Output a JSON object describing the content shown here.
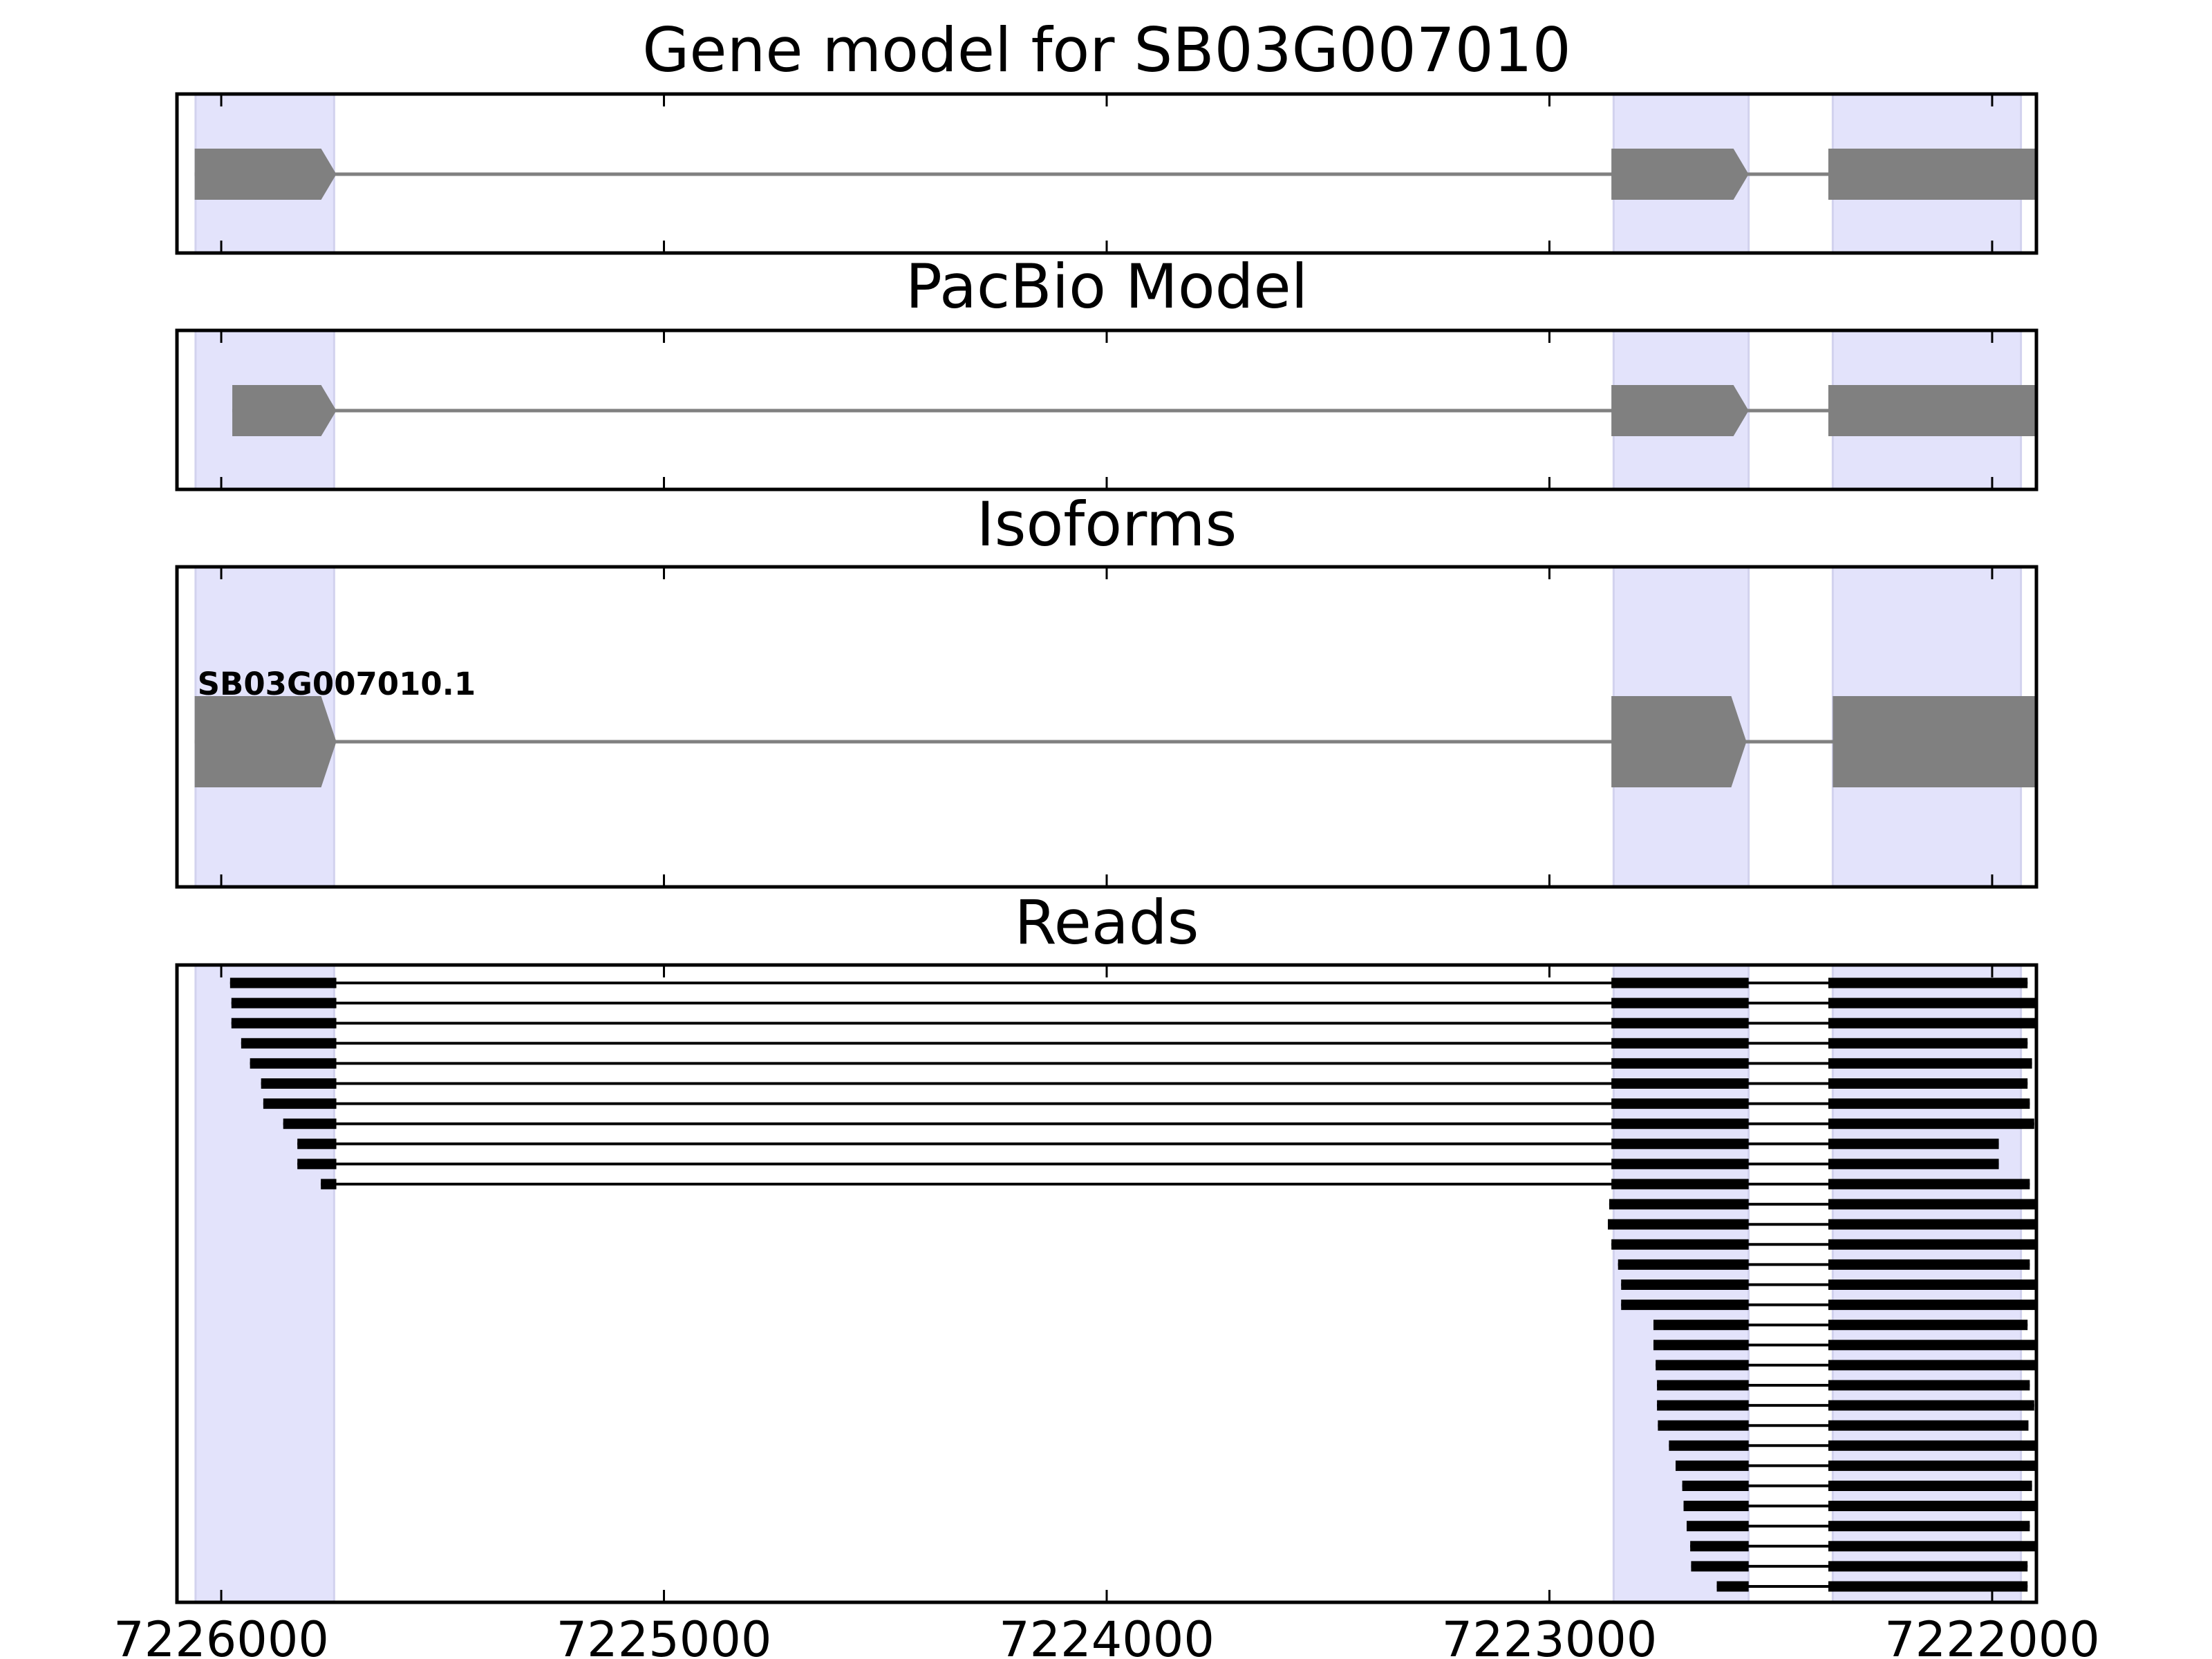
{
  "colors": {
    "exon_model": "#808080",
    "intron_model": "#808080",
    "read": "#000000",
    "highlight": "#e3e3fb",
    "highlight_edge": "#d2d2ee",
    "axis": "#000000"
  },
  "chart_data": [
    {
      "type": "gene-track",
      "title": "Gene model for SB03G007010",
      "strand": "-",
      "exons": [
        [
          7226060,
          7225740
        ],
        [
          7222860,
          7222550
        ],
        [
          7222370,
          7221620
        ]
      ]
    },
    {
      "type": "gene-track",
      "title": "PacBio Model",
      "strand": "-",
      "exons": [
        [
          7225975,
          7225740
        ],
        [
          7222860,
          7222550
        ],
        [
          7222370,
          7221615
        ]
      ]
    },
    {
      "type": "gene-track",
      "title": "Isoforms",
      "strand": "-",
      "isoforms": [
        {
          "name": "SB03G007010.1",
          "exons": [
            [
              7226060,
              7225740
            ],
            [
              7222860,
              7222555
            ],
            [
              7222360,
              7221620
            ]
          ]
        }
      ]
    },
    {
      "type": "read-track",
      "title": "Reads",
      "reads": [
        [
          [
            7225980,
            7225740
          ],
          [
            7222860,
            7222550
          ],
          [
            7222370,
            7221920
          ]
        ],
        [
          [
            7225977,
            7225740
          ],
          [
            7222860,
            7222550
          ],
          [
            7222370,
            7221890
          ]
        ],
        [
          [
            7225977,
            7225740
          ],
          [
            7222860,
            7222550
          ],
          [
            7222370,
            7221900
          ]
        ],
        [
          [
            7225955,
            7225740
          ],
          [
            7222860,
            7222550
          ],
          [
            7222370,
            7221920
          ]
        ],
        [
          [
            7225935,
            7225740
          ],
          [
            7222860,
            7222550
          ],
          [
            7222370,
            7221910
          ]
        ],
        [
          [
            7225910,
            7225740
          ],
          [
            7222860,
            7222550
          ],
          [
            7222370,
            7221920
          ]
        ],
        [
          [
            7225905,
            7225740
          ],
          [
            7222860,
            7222550
          ],
          [
            7222370,
            7221915
          ]
        ],
        [
          [
            7225860,
            7225740
          ],
          [
            7222860,
            7222550
          ],
          [
            7222370,
            7221905
          ]
        ],
        [
          [
            7225828,
            7225740
          ],
          [
            7222860,
            7222550
          ],
          [
            7222370,
            7221985
          ]
        ],
        [
          [
            7225828,
            7225740
          ],
          [
            7222860,
            7222550
          ],
          [
            7222370,
            7221985
          ]
        ],
        [
          [
            7225775,
            7225740
          ],
          [
            7222860,
            7222550
          ],
          [
            7222370,
            7221915
          ]
        ],
        [
          [
            7222865,
            7222550
          ],
          [
            7222370,
            7221900
          ]
        ],
        [
          [
            7222868,
            7222550
          ],
          [
            7222370,
            7221865
          ]
        ],
        [
          [
            7222860,
            7222550
          ],
          [
            7222370,
            7221865
          ]
        ],
        [
          [
            7222845,
            7222550
          ],
          [
            7222370,
            7221915
          ]
        ],
        [
          [
            7222838,
            7222550
          ],
          [
            7222370,
            7221870
          ]
        ],
        [
          [
            7222838,
            7222550
          ],
          [
            7222370,
            7221870
          ]
        ],
        [
          [
            7222765,
            7222550
          ],
          [
            7222370,
            7221920
          ]
        ],
        [
          [
            7222765,
            7222550
          ],
          [
            7222370,
            7221895
          ]
        ],
        [
          [
            7222760,
            7222550
          ],
          [
            7222370,
            7221860
          ]
        ],
        [
          [
            7222757,
            7222550
          ],
          [
            7222370,
            7221915
          ]
        ],
        [
          [
            7222757,
            7222550
          ],
          [
            7222370,
            7221905
          ]
        ],
        [
          [
            7222755,
            7222550
          ],
          [
            7222370,
            7221918
          ]
        ],
        [
          [
            7222730,
            7222550
          ],
          [
            7222370,
            7221870
          ]
        ],
        [
          [
            7222715,
            7222550
          ],
          [
            7222370,
            7221620
          ]
        ],
        [
          [
            7222700,
            7222550
          ],
          [
            7222370,
            7221910
          ]
        ],
        [
          [
            7222697,
            7222550
          ],
          [
            7222370,
            7221870
          ]
        ],
        [
          [
            7222690,
            7222550
          ],
          [
            7222370,
            7221915
          ]
        ],
        [
          [
            7222682,
            7222550
          ],
          [
            7222370,
            7221895
          ]
        ],
        [
          [
            7222680,
            7222550
          ],
          [
            7222370,
            7221920
          ]
        ],
        [
          [
            7222622,
            7222550
          ],
          [
            7222370,
            7221920
          ]
        ]
      ]
    }
  ],
  "axis": {
    "xlim": [
      7226100,
      7221900
    ],
    "x_reversed": true,
    "ticks": [
      7226000,
      7225000,
      7224000,
      7223000,
      7222000
    ],
    "tick_labels": [
      "7226000",
      "7225000",
      "7224000",
      "7223000",
      "7222000"
    ]
  },
  "highlight_regions": [
    [
      7226058,
      7225745
    ],
    [
      7222855,
      7222550
    ],
    [
      7222360,
      7221935
    ]
  ]
}
